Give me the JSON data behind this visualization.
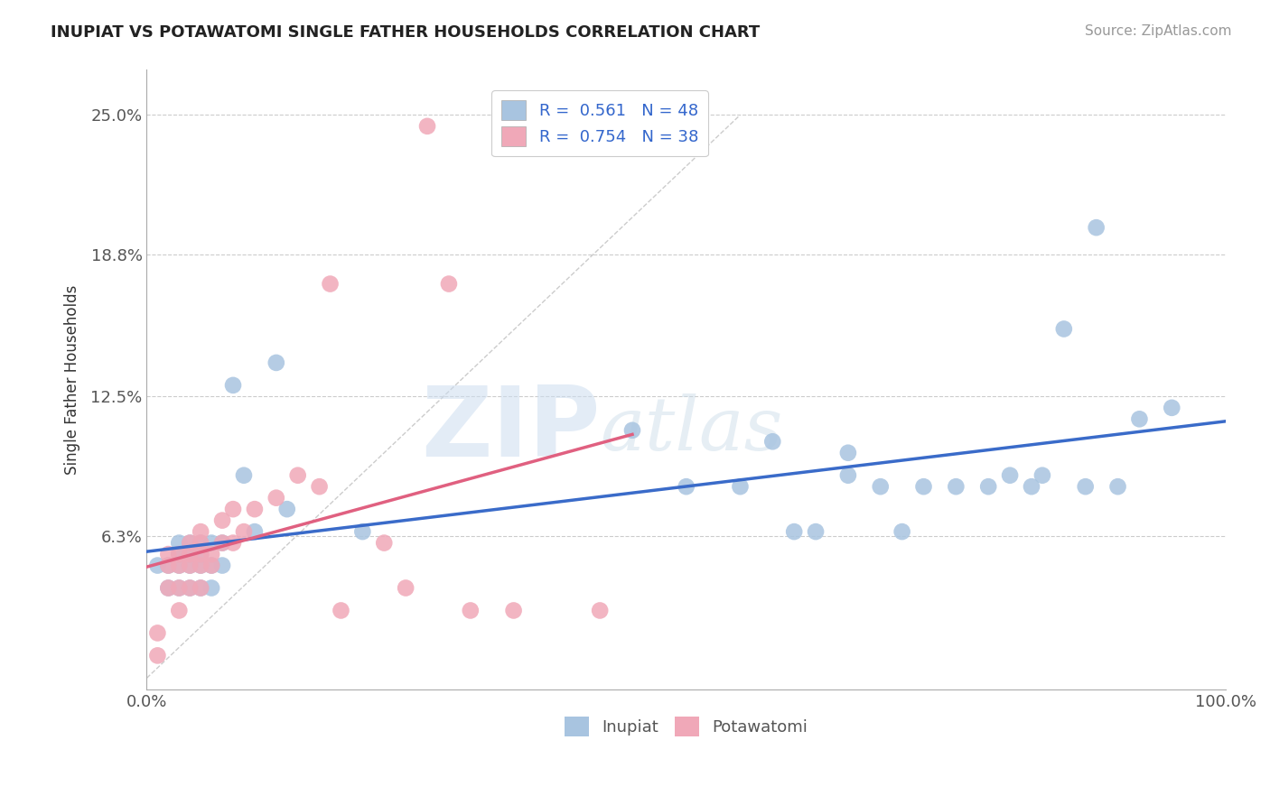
{
  "title": "INUPIAT VS POTAWATOMI SINGLE FATHER HOUSEHOLDS CORRELATION CHART",
  "source": "Source: ZipAtlas.com",
  "ylabel": "Single Father Households",
  "xlim": [
    0,
    1.0
  ],
  "ylim": [
    -0.005,
    0.27
  ],
  "xticklabels": [
    "0.0%",
    "100.0%"
  ],
  "ytick_values": [
    0.0,
    0.063,
    0.125,
    0.188,
    0.25
  ],
  "ytick_labels": [
    "",
    "6.3%",
    "12.5%",
    "18.8%",
    "25.0%"
  ],
  "inupiat_color": "#a8c4e0",
  "potawatomi_color": "#f0a8b8",
  "inupiat_line_color": "#3a6bc9",
  "potawatomi_line_color": "#e06080",
  "watermark_zip": "ZIP",
  "watermark_atlas": "atlas",
  "background_color": "#ffffff",
  "grid_color": "#cccccc",
  "inupiat_x": [
    0.01,
    0.02,
    0.02,
    0.03,
    0.03,
    0.03,
    0.03,
    0.04,
    0.04,
    0.04,
    0.04,
    0.05,
    0.05,
    0.05,
    0.05,
    0.06,
    0.06,
    0.06,
    0.07,
    0.07,
    0.08,
    0.09,
    0.1,
    0.12,
    0.13,
    0.2,
    0.45,
    0.5,
    0.55,
    0.58,
    0.6,
    0.62,
    0.65,
    0.65,
    0.68,
    0.7,
    0.72,
    0.75,
    0.78,
    0.8,
    0.82,
    0.83,
    0.85,
    0.87,
    0.88,
    0.9,
    0.92,
    0.95
  ],
  "inupiat_y": [
    0.05,
    0.04,
    0.05,
    0.04,
    0.05,
    0.055,
    0.06,
    0.04,
    0.05,
    0.055,
    0.06,
    0.04,
    0.05,
    0.055,
    0.06,
    0.04,
    0.05,
    0.06,
    0.05,
    0.06,
    0.13,
    0.09,
    0.065,
    0.14,
    0.075,
    0.065,
    0.11,
    0.085,
    0.085,
    0.105,
    0.065,
    0.065,
    0.1,
    0.09,
    0.085,
    0.065,
    0.085,
    0.085,
    0.085,
    0.09,
    0.085,
    0.09,
    0.155,
    0.085,
    0.2,
    0.085,
    0.115,
    0.12
  ],
  "potawatomi_x": [
    0.01,
    0.01,
    0.02,
    0.02,
    0.02,
    0.03,
    0.03,
    0.03,
    0.03,
    0.04,
    0.04,
    0.04,
    0.04,
    0.05,
    0.05,
    0.05,
    0.05,
    0.05,
    0.06,
    0.06,
    0.07,
    0.07,
    0.08,
    0.08,
    0.09,
    0.1,
    0.12,
    0.14,
    0.16,
    0.17,
    0.18,
    0.22,
    0.24,
    0.26,
    0.28,
    0.3,
    0.34,
    0.42
  ],
  "potawatomi_y": [
    0.01,
    0.02,
    0.04,
    0.05,
    0.055,
    0.03,
    0.04,
    0.05,
    0.055,
    0.04,
    0.05,
    0.055,
    0.06,
    0.04,
    0.05,
    0.055,
    0.06,
    0.065,
    0.05,
    0.055,
    0.06,
    0.07,
    0.06,
    0.075,
    0.065,
    0.075,
    0.08,
    0.09,
    0.085,
    0.175,
    0.03,
    0.06,
    0.04,
    0.245,
    0.175,
    0.03,
    0.03,
    0.03
  ]
}
